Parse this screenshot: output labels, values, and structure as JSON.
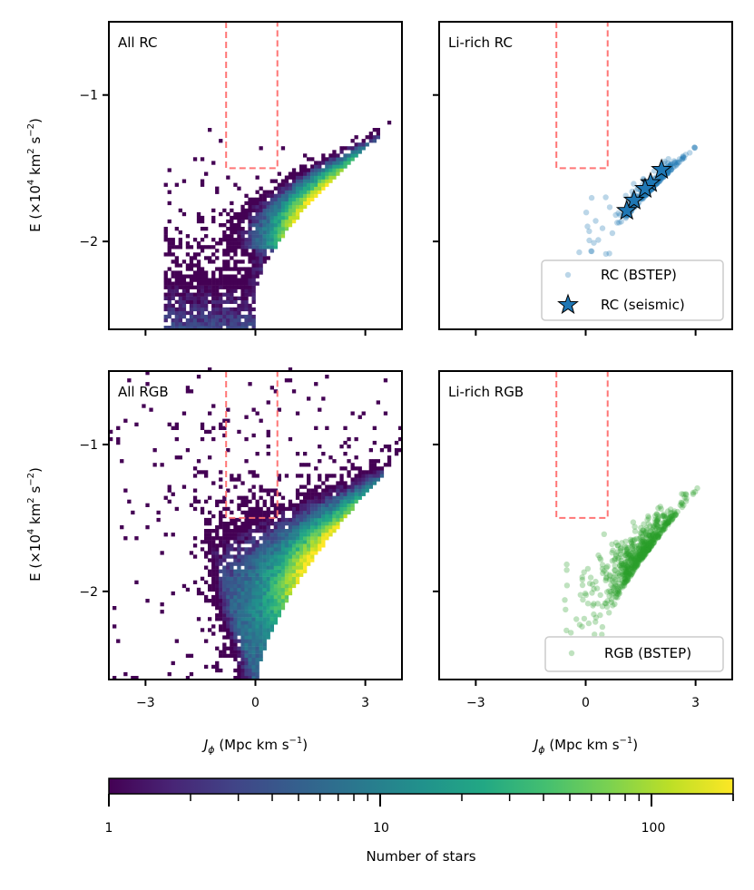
{
  "chart_data": {
    "type": "heatmap",
    "layout": "2x2 panels with shared axes and a horizontal colorbar below",
    "xlabel_parts": [
      "J",
      "ϕ",
      " (Mpc km s",
      "−1",
      ")"
    ],
    "ylabel_parts": [
      "E (×10",
      "4",
      " km",
      "2",
      " s",
      "−2",
      ")"
    ],
    "xlim": [
      -4,
      4
    ],
    "ylim": [
      -2.6,
      -0.5
    ],
    "xticks": [
      -3,
      0,
      3
    ],
    "xtick_labels": [
      "−3",
      "0",
      "3"
    ],
    "yticks": [
      -1,
      -2
    ],
    "ytick_labels": [
      "−1",
      "−2"
    ],
    "selection_box": {
      "x": [
        -0.8,
        0.6
      ],
      "y_max": -1.5,
      "color": "#ff6f6f",
      "style": "dashed"
    },
    "panels": [
      {
        "title": "All RC",
        "kind": "2d-histogram",
        "population": "RC"
      },
      {
        "title": "Li-rich RC",
        "kind": "scatter",
        "legend": [
          {
            "label": "RC (BSTEP)",
            "marker": "circle",
            "color": "#1f77b4"
          },
          {
            "label": "RC (seismic)",
            "marker": "star",
            "color": "#1f77b4"
          }
        ],
        "legend_position": "lower-right",
        "seismic_points": [
          {
            "x": 2.07,
            "y": -1.51
          },
          {
            "x": 1.77,
            "y": -1.6
          },
          {
            "x": 1.62,
            "y": -1.64
          },
          {
            "x": 1.32,
            "y": -1.72
          },
          {
            "x": 1.12,
            "y": -1.79
          }
        ]
      },
      {
        "title": "All RGB",
        "kind": "2d-histogram",
        "population": "RGB"
      },
      {
        "title": "Li-rich RGB",
        "kind": "scatter",
        "legend": [
          {
            "label": "RGB (BSTEP)",
            "marker": "circle",
            "color": "#2ca02c"
          }
        ],
        "legend_position": "lower-right"
      }
    ],
    "colorbar": {
      "label": "Number of stars",
      "scale": "log",
      "range": [
        1,
        200
      ],
      "colormap": "viridis",
      "ticks": [
        1,
        10,
        100
      ],
      "tick_labels": [
        "1",
        "10",
        "100"
      ]
    },
    "grid": false
  }
}
